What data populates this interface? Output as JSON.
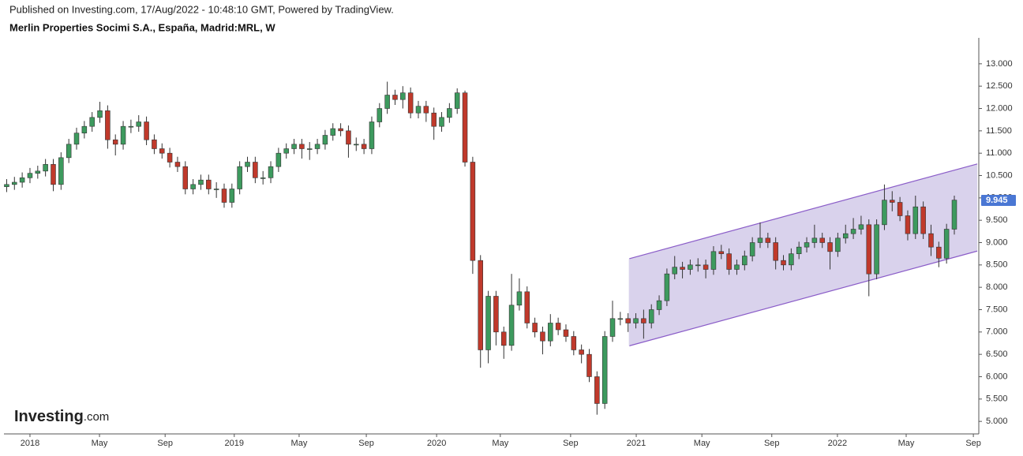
{
  "header": {
    "published": "Published on Investing.com, 17/Aug/2022 - 10:48:10 GMT, Powered by TradingView.",
    "logo": [
      "Investing",
      ".com"
    ]
  },
  "chart_data": {
    "type": "candlestick",
    "title": "Merlin Properties Socimi S.A., España, Madrid:MRL, W",
    "up_color": "#3d9a5e",
    "down_color": "#c0392b",
    "wick_color": "#333333",
    "xlim": [
      -6.7,
      244.3
    ],
    "ylim": [
      4.72,
      13.58
    ],
    "xticks": [
      {
        "value": 0,
        "label": "2018"
      },
      {
        "value": 17.9,
        "label": "May"
      },
      {
        "value": 34.8,
        "label": "Sep"
      },
      {
        "value": 52.6,
        "label": "2019"
      },
      {
        "value": 69.3,
        "label": "May"
      },
      {
        "value": 86.6,
        "label": "Sep"
      },
      {
        "value": 104.7,
        "label": "2020"
      },
      {
        "value": 121.1,
        "label": "May"
      },
      {
        "value": 139.2,
        "label": "Sep"
      },
      {
        "value": 156.1,
        "label": "2021"
      },
      {
        "value": 173,
        "label": "May"
      },
      {
        "value": 191,
        "label": "Sep"
      },
      {
        "value": 207.9,
        "label": "2022"
      },
      {
        "value": 225.6,
        "label": "May"
      },
      {
        "value": 242.9,
        "label": "Sep"
      }
    ],
    "yticks": [
      {
        "value": 5,
        "label": "5.000"
      },
      {
        "value": 5.5,
        "label": "5.500"
      },
      {
        "value": 6,
        "label": "6.000"
      },
      {
        "value": 6.5,
        "label": "6.500"
      },
      {
        "value": 7,
        "label": "7.000"
      },
      {
        "value": 7.5,
        "label": "7.500"
      },
      {
        "value": 8,
        "label": "8.000"
      },
      {
        "value": 8.5,
        "label": "8.500"
      },
      {
        "value": 9,
        "label": "9.000"
      },
      {
        "value": 9.5,
        "label": "9.500"
      },
      {
        "value": 10,
        "label": "10.000"
      },
      {
        "value": 10.5,
        "label": "10.500"
      },
      {
        "value": 11,
        "label": "11.000"
      },
      {
        "value": 11.5,
        "label": "11.500"
      },
      {
        "value": 12,
        "label": "12.000"
      },
      {
        "value": 12.5,
        "label": "12.500"
      },
      {
        "value": 13,
        "label": "13.000"
      }
    ],
    "last_value": 9.945,
    "last_color": "#4a77d4",
    "channel": {
      "color": "#8a5cc8",
      "fill": "#d9d2ec",
      "x": [
        154.3,
        243.9
      ],
      "upper": [
        8.64,
        10.76
      ],
      "lower": [
        6.69,
        8.81
      ]
    },
    "x": [
      -6,
      -4,
      -2,
      0,
      2,
      4,
      6,
      8,
      10,
      12,
      14,
      16,
      18,
      20,
      22,
      24,
      26,
      28,
      30,
      32,
      34,
      36,
      38,
      40,
      42,
      44,
      46,
      48,
      50,
      52,
      54,
      56,
      58,
      60,
      62,
      64,
      66,
      68,
      70,
      72,
      74,
      76,
      78,
      80,
      82,
      84,
      86,
      88,
      90,
      92,
      94,
      96,
      98,
      100,
      102,
      104,
      106,
      108,
      110,
      112,
      114,
      116,
      118,
      120,
      122,
      124,
      126,
      128,
      130,
      132,
      134,
      136,
      138,
      140,
      142,
      144,
      146,
      148,
      150,
      152,
      154,
      156,
      158,
      160,
      162,
      164,
      166,
      168,
      170,
      172,
      174,
      176,
      178,
      180,
      182,
      184,
      186,
      188,
      190,
      192,
      194,
      196,
      198,
      200,
      202,
      204,
      206,
      208,
      210,
      212,
      214,
      216,
      218,
      220,
      222,
      224,
      226,
      228,
      230,
      232,
      234,
      236,
      238
    ],
    "open": [
      10.25,
      10.3,
      10.35,
      10.45,
      10.55,
      10.6,
      10.75,
      10.3,
      10.9,
      11.2,
      11.45,
      11.6,
      11.8,
      11.95,
      11.3,
      11.2,
      11.6,
      11.6,
      11.7,
      11.3,
      11.1,
      11.0,
      10.8,
      10.7,
      10.2,
      10.3,
      10.4,
      10.2,
      10.2,
      9.9,
      10.2,
      10.7,
      10.8,
      10.45,
      10.45,
      10.7,
      11.0,
      11.1,
      11.2,
      11.1,
      11.1,
      11.2,
      11.4,
      11.55,
      11.5,
      11.2,
      11.2,
      11.1,
      11.7,
      12.0,
      12.3,
      12.2,
      12.35,
      11.9,
      12.05,
      11.9,
      11.6,
      11.8,
      12.0,
      12.35,
      10.8,
      8.6,
      6.6,
      7.8,
      7.0,
      6.7,
      7.6,
      7.9,
      7.2,
      7.0,
      6.8,
      7.2,
      7.05,
      6.9,
      6.6,
      6.5,
      6.0,
      5.4,
      6.9,
      7.3,
      7.3,
      7.2,
      7.3,
      7.2,
      7.5,
      7.7,
      8.3,
      8.45,
      8.4,
      8.5,
      8.5,
      8.4,
      8.8,
      8.75,
      8.4,
      8.5,
      8.7,
      9.0,
      9.1,
      9.0,
      8.6,
      8.5,
      8.75,
      8.9,
      9.0,
      9.1,
      9.0,
      8.8,
      9.1,
      9.2,
      9.3,
      9.4,
      8.3,
      9.4,
      9.95,
      9.9,
      9.6,
      9.2,
      9.8,
      9.2,
      8.9,
      8.65,
      9.3
    ],
    "high": [
      10.42,
      10.47,
      10.57,
      10.67,
      10.72,
      10.87,
      10.87,
      11.02,
      11.32,
      11.57,
      11.72,
      11.92,
      12.15,
      12.07,
      11.42,
      11.72,
      11.75,
      11.85,
      11.82,
      11.42,
      11.22,
      11.12,
      10.92,
      10.82,
      10.42,
      10.52,
      10.52,
      10.35,
      10.32,
      10.32,
      10.82,
      10.92,
      10.92,
      10.6,
      10.82,
      11.12,
      11.22,
      11.32,
      11.32,
      11.25,
      11.32,
      11.52,
      11.67,
      11.67,
      11.62,
      11.35,
      11.32,
      11.82,
      12.12,
      12.6,
      12.42,
      12.5,
      12.47,
      12.17,
      12.17,
      12.02,
      11.92,
      12.12,
      12.45,
      12.4,
      10.92,
      8.72,
      7.92,
      7.92,
      7.12,
      8.3,
      8.2,
      8.02,
      7.32,
      7.12,
      7.4,
      7.32,
      7.17,
      7.02,
      6.72,
      6.62,
      6.12,
      7.02,
      7.7,
      7.45,
      7.42,
      7.42,
      7.5,
      7.62,
      7.82,
      8.42,
      8.7,
      8.57,
      8.62,
      8.65,
      8.62,
      8.92,
      8.95,
      8.87,
      8.62,
      8.82,
      9.12,
      9.45,
      9.22,
      9.12,
      8.72,
      8.87,
      9.02,
      9.12,
      9.4,
      9.22,
      9.12,
      9.22,
      9.4,
      9.55,
      9.6,
      9.52,
      9.52,
      10.3,
      10.15,
      10.02,
      9.72,
      10.05,
      9.92,
      9.4,
      9.02,
      9.42,
      10.05
    ],
    "low": [
      10.13,
      10.18,
      10.23,
      10.33,
      10.43,
      10.48,
      10.15,
      10.18,
      10.78,
      11.08,
      11.33,
      11.48,
      11.68,
      11.1,
      10.95,
      11.08,
      11.45,
      11.48,
      11.18,
      10.98,
      10.88,
      10.68,
      10.58,
      10.08,
      10.08,
      10.18,
      10.08,
      10.0,
      9.78,
      9.78,
      10.08,
      10.58,
      10.33,
      10.3,
      10.33,
      10.58,
      10.88,
      10.98,
      10.88,
      10.85,
      10.98,
      11.08,
      11.28,
      11.38,
      10.9,
      11.05,
      10.98,
      10.98,
      11.58,
      11.88,
      12.08,
      12.0,
      11.78,
      11.78,
      11.7,
      11.3,
      11.48,
      11.68,
      11.88,
      10.7,
      8.3,
      6.2,
      6.3,
      6.7,
      6.4,
      6.58,
      7.48,
      7.08,
      6.88,
      6.5,
      6.68,
      6.93,
      6.78,
      6.48,
      6.3,
      5.88,
      5.15,
      5.28,
      6.78,
      7.15,
      7.0,
      7.08,
      6.85,
      7.08,
      7.38,
      7.58,
      8.18,
      8.2,
      8.28,
      8.35,
      8.2,
      8.28,
      8.63,
      8.28,
      8.28,
      8.38,
      8.58,
      8.88,
      8.88,
      8.4,
      8.38,
      8.38,
      8.63,
      8.78,
      8.88,
      8.88,
      8.4,
      8.68,
      8.98,
      9.08,
      9.18,
      7.8,
      8.18,
      9.28,
      9.7,
      9.48,
      9.05,
      9.08,
      9.08,
      8.7,
      8.45,
      8.53,
      9.18
    ],
    "close": [
      10.3,
      10.35,
      10.45,
      10.55,
      10.6,
      10.75,
      10.3,
      10.9,
      11.2,
      11.45,
      11.6,
      11.8,
      11.95,
      11.3,
      11.2,
      11.6,
      11.6,
      11.7,
      11.3,
      11.1,
      11.0,
      10.8,
      10.7,
      10.2,
      10.3,
      10.4,
      10.2,
      10.2,
      9.9,
      10.2,
      10.7,
      10.8,
      10.45,
      10.45,
      10.7,
      11.0,
      11.1,
      11.2,
      11.1,
      11.1,
      11.2,
      11.4,
      11.55,
      11.5,
      11.2,
      11.2,
      11.1,
      11.7,
      12.0,
      12.3,
      12.2,
      12.35,
      11.9,
      12.05,
      11.9,
      11.6,
      11.8,
      12.0,
      12.35,
      10.8,
      8.6,
      6.6,
      7.8,
      7.0,
      6.7,
      7.6,
      7.9,
      7.2,
      7.0,
      6.8,
      7.2,
      7.05,
      6.9,
      6.6,
      6.5,
      6.0,
      5.4,
      6.9,
      7.3,
      7.3,
      7.2,
      7.3,
      7.2,
      7.5,
      7.7,
      8.3,
      8.45,
      8.4,
      8.5,
      8.5,
      8.4,
      8.8,
      8.75,
      8.4,
      8.5,
      8.7,
      9.0,
      9.1,
      9.0,
      8.6,
      8.5,
      8.75,
      8.9,
      9.0,
      9.1,
      9.0,
      8.8,
      9.1,
      9.2,
      9.3,
      9.4,
      8.3,
      9.4,
      9.95,
      9.9,
      9.6,
      9.2,
      9.8,
      9.2,
      8.9,
      8.65,
      9.3,
      9.95
    ]
  }
}
